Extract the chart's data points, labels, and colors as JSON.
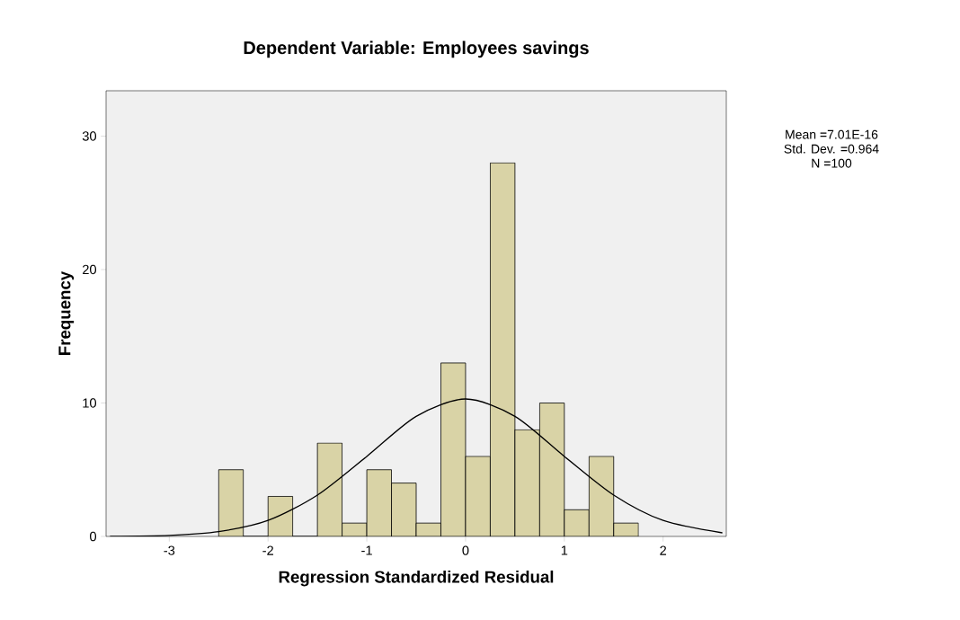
{
  "chart_data": {
    "type": "histogram",
    "title": "Dependent Variable: Employees savings",
    "xlabel": "Regression Standardized Residual",
    "ylabel": "Frequency",
    "bins": [
      -2.5,
      -2.25,
      -2.0,
      -1.75,
      -1.5,
      -1.25,
      -1.0,
      -0.75,
      -0.5,
      -0.25,
      0.0,
      0.25,
      0.5,
      0.75,
      1.0,
      1.25,
      1.5,
      1.75
    ],
    "values": [
      5,
      0,
      3,
      0,
      7,
      1,
      5,
      4,
      1,
      13,
      6,
      28,
      8,
      10,
      2,
      6,
      1
    ],
    "color": "#d9d3a6",
    "series": [
      {
        "type": "line",
        "color": "#000000",
        "x": [
          -3.6,
          -3.0,
          -2.5,
          -2.0,
          -1.5,
          -1.0,
          -0.5,
          0.0,
          0.5,
          1.0,
          1.5,
          2.0,
          2.6
        ],
        "values": [
          0.01,
          0.08,
          0.36,
          1.2,
          3.1,
          6.0,
          9.0,
          10.3,
          9.0,
          6.0,
          3.1,
          1.2,
          0.27
        ]
      }
    ],
    "xlim": [
      -3.64,
      2.64
    ],
    "ylim": [
      0,
      33.4
    ],
    "xticks": [
      -3,
      -2,
      -1,
      0,
      1,
      2
    ],
    "yticks": [
      0,
      10,
      20,
      30
    ],
    "grid": false,
    "marker": "none",
    "annotations": [
      "Mean =7.01E-16",
      "Std. Dev. =0.964",
      "N =100"
    ]
  }
}
